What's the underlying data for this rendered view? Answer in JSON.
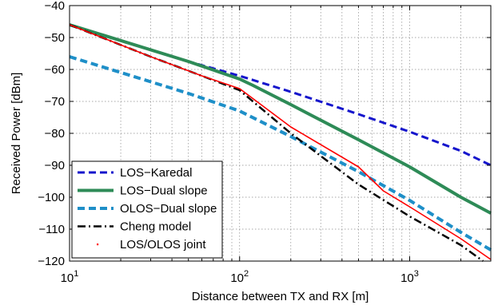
{
  "chart_data": {
    "type": "line",
    "title": "",
    "xlabel": "Distance between TX and RX [m]",
    "ylabel": "Received Power [dBm]",
    "xscale": "log",
    "xlim": [
      10,
      3000
    ],
    "ylim": [
      -120,
      -40
    ],
    "grid": true,
    "legend_position": "bottom-left",
    "x_ticks": [
      {
        "value": 10,
        "base": "10",
        "exp": "1"
      },
      {
        "value": 100,
        "base": "10",
        "exp": "2"
      },
      {
        "value": 1000,
        "base": "10",
        "exp": "3"
      }
    ],
    "y_ticks": [
      {
        "value": -40,
        "label": "−40"
      },
      {
        "value": -50,
        "label": "−50"
      },
      {
        "value": -60,
        "label": "−60"
      },
      {
        "value": -70,
        "label": "−70"
      },
      {
        "value": -80,
        "label": "−80"
      },
      {
        "value": -90,
        "label": "−90"
      },
      {
        "value": -100,
        "label": "−100"
      },
      {
        "value": -110,
        "label": "−110"
      },
      {
        "value": -120,
        "label": "−120"
      }
    ],
    "series": [
      {
        "name": "LOS−Karedal",
        "color": "#1515cc",
        "style": "dashed",
        "width": 3,
        "points": [
          [
            10,
            -46
          ],
          [
            50,
            -57.5
          ],
          [
            100,
            -62
          ],
          [
            200,
            -67
          ],
          [
            500,
            -74
          ],
          [
            1000,
            -79.5
          ],
          [
            2000,
            -85.5
          ],
          [
            3000,
            -90
          ]
        ]
      },
      {
        "name": "LOS−Dual slope",
        "color": "#2e8b57",
        "style": "solid",
        "width": 4,
        "points": [
          [
            10,
            -46
          ],
          [
            50,
            -57.5
          ],
          [
            100,
            -63
          ],
          [
            120,
            -65
          ],
          [
            200,
            -71
          ],
          [
            500,
            -82
          ],
          [
            1000,
            -90.5
          ],
          [
            2000,
            -100
          ],
          [
            3000,
            -105
          ]
        ]
      },
      {
        "name": "OLOS−Dual slope",
        "color": "#1e8fc8",
        "style": "dashed",
        "width": 4,
        "points": [
          [
            10,
            -56
          ],
          [
            50,
            -67.5
          ],
          [
            100,
            -73
          ],
          [
            200,
            -81
          ],
          [
            500,
            -92
          ],
          [
            1000,
            -101
          ],
          [
            2000,
            -111
          ],
          [
            3000,
            -116.5
          ]
        ]
      },
      {
        "name": "Cheng model",
        "color": "#000000",
        "style": "dashdot",
        "width": 2.5,
        "points": [
          [
            10,
            -46
          ],
          [
            30,
            -56
          ],
          [
            60,
            -62
          ],
          [
            100,
            -66.5
          ],
          [
            200,
            -80
          ],
          [
            500,
            -96
          ],
          [
            1000,
            -106
          ],
          [
            2000,
            -115
          ],
          [
            2700,
            -120
          ]
        ]
      },
      {
        "name": "LOS/OLOS joint",
        "color": "#ff0000",
        "style": "solid",
        "width": 1.6,
        "points": [
          [
            10,
            -46
          ],
          [
            30,
            -56
          ],
          [
            60,
            -62
          ],
          [
            100,
            -66
          ],
          [
            200,
            -78
          ],
          [
            500,
            -90.5
          ],
          [
            700,
            -98
          ],
          [
            1000,
            -103
          ],
          [
            2000,
            -113
          ],
          [
            3000,
            -119.5
          ]
        ]
      }
    ]
  }
}
